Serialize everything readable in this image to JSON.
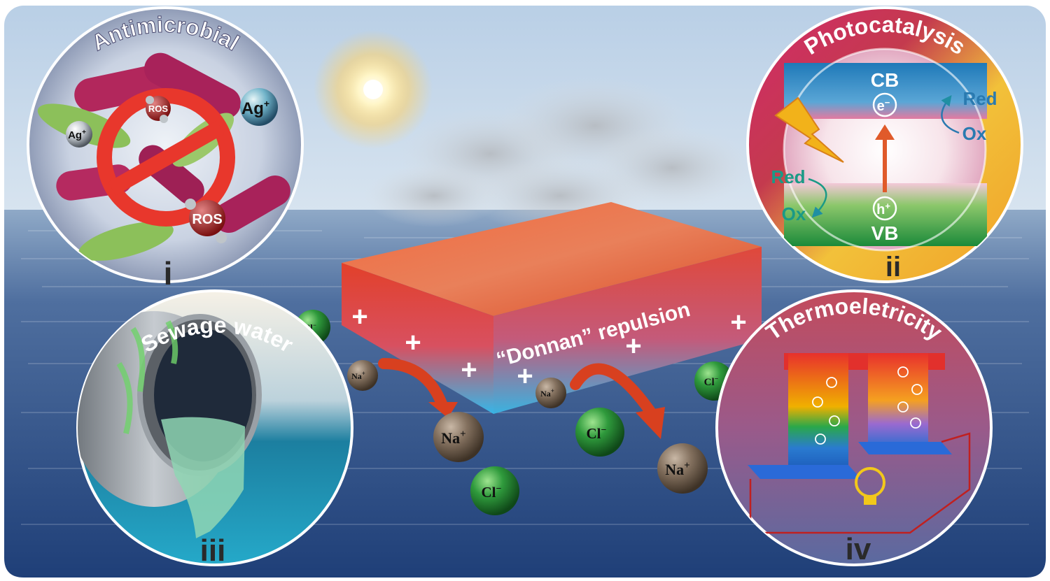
{
  "panels": {
    "antimicrobial": {
      "title": "Antimicrobial",
      "roman": "i",
      "ros1": "ROS",
      "ros2": "ROS",
      "ag1": "Ag",
      "ag1_sup": "+",
      "ag2": "Ag",
      "ag2_sup": "+"
    },
    "photocatalysis": {
      "title": "Photocatalysis",
      "roman": "ii",
      "cb": "CB",
      "vb": "VB",
      "electron": "e",
      "electron_sup": "−",
      "hole": "h",
      "hole_sup": "+",
      "red_top": "Red",
      "ox_top": "Ox",
      "red_bottom": "Red",
      "ox_bottom": "Ox"
    },
    "sewage": {
      "title": "Sewage water",
      "roman": "iii"
    },
    "thermo": {
      "title": "Thermoeletricity",
      "roman": "iv"
    }
  },
  "membrane": {
    "label": "“Donnan” repulsion",
    "plus": "+"
  },
  "ions": {
    "na": "Na",
    "na_sup": "+",
    "cl": "Cl",
    "cl_sup": "−"
  },
  "colors": {
    "sea_dark": "#2d4f86",
    "sky": "#c9dcec",
    "membrane_top": "#e8583a",
    "membrane_side_blue": "#2eb3e6",
    "arrow_red": "#d8401f",
    "na_ball": "#7c6a58",
    "cl_ball": "#2f8a3a",
    "teal_text": "#1a9a86",
    "blue_text": "#2a7ab0"
  }
}
